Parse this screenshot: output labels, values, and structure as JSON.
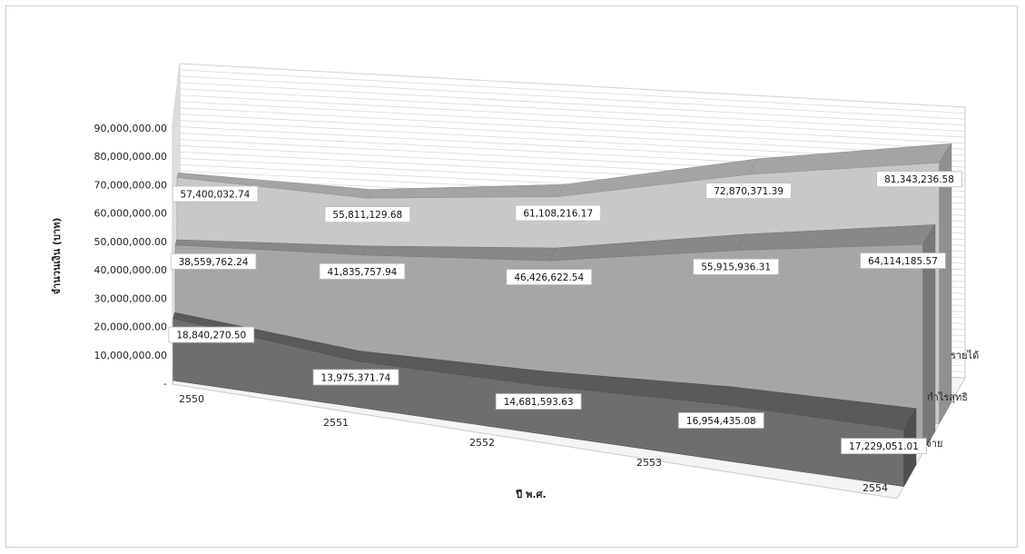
{
  "chart_data": {
    "type": "area",
    "variant": "3d-area",
    "title": "",
    "xlabel": "ปี พ.ศ.",
    "ylabel": "จำนวนเงิน (บาท)",
    "categories": [
      "2550",
      "2551",
      "2552",
      "2553",
      "2554"
    ],
    "ylim": [
      0,
      90000000
    ],
    "y_ticks": [
      "-",
      "10,000,000.00",
      "20,000,000.00",
      "30,000,000.00",
      "40,000,000.00",
      "50,000,000.00",
      "60,000,000.00",
      "70,000,000.00",
      "80,000,000.00",
      "90,000,000.00"
    ],
    "grid": true,
    "series": [
      {
        "name": "รายได้",
        "color": "#c8c8c8",
        "values": [
          57400032.74,
          55811129.68,
          61108216.17,
          72870371.39,
          81343236.58
        ],
        "labels": [
          "57,400,032.74",
          "55,811,129.68",
          "61,108,216.17",
          "72,870,371.39",
          "81,343,236.58"
        ]
      },
      {
        "name": "กำไรสุทธิ",
        "color": "#a6a6a6",
        "values": [
          38559762.24,
          41835757.94,
          46426622.54,
          55915936.31,
          64114185.57
        ],
        "labels": [
          "38,559,762.24",
          "41,835,757.94",
          "46,426,622.54",
          "55,915,936.31",
          "64,114,185.57"
        ]
      },
      {
        "name": "ค่าใช้จ่าย",
        "color": "#6e6e6e",
        "values": [
          18840270.5,
          13975371.74,
          14681593.63,
          16954435.08,
          17229051.01
        ],
        "labels": [
          "18,840,270.50",
          "13,975,371.74",
          "14,681,593.63",
          "16,954,435.08",
          "17,229,051.01"
        ]
      }
    ]
  }
}
